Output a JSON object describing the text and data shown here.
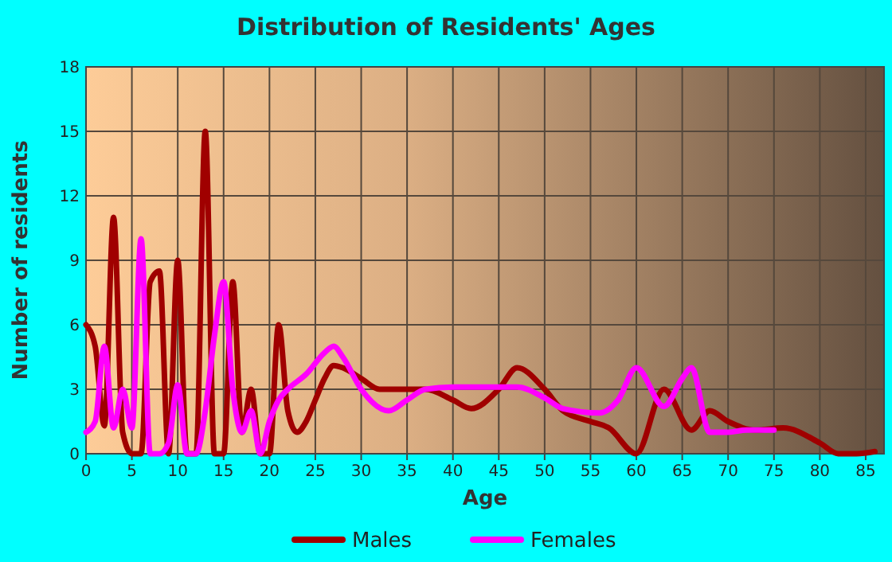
{
  "chart_data": {
    "type": "line",
    "title": "Distribution of Residents' Ages",
    "xlabel": "Age",
    "ylabel": "Number of residents",
    "xlim": [
      0,
      87
    ],
    "xticks": [
      0,
      5,
      10,
      15,
      20,
      25,
      30,
      35,
      40,
      45,
      50,
      55,
      60,
      65,
      70,
      75,
      80,
      85
    ],
    "ylim": [
      0,
      18
    ],
    "yticks": [
      0,
      3,
      6,
      9,
      12,
      15,
      18
    ],
    "grid": true,
    "legend": "bottom",
    "marker": "none",
    "line_style": "solid",
    "series": [
      {
        "name": "Males",
        "color": "#a00000",
        "x": [
          0,
          1,
          2,
          3,
          4,
          5,
          6,
          7,
          8,
          9,
          10,
          11,
          12,
          13,
          14,
          15,
          16,
          17,
          18,
          19,
          20,
          21,
          22,
          23,
          24,
          25,
          26,
          27,
          28,
          30,
          32,
          35,
          37,
          40,
          42,
          45,
          47,
          50,
          52,
          55,
          57,
          60,
          63,
          66,
          68,
          70,
          73,
          76,
          80,
          82,
          84,
          86
        ],
        "values": [
          6,
          5,
          1.3,
          11,
          1,
          0,
          0,
          8,
          8.5,
          0,
          9,
          0,
          0,
          15,
          0,
          0,
          8,
          1,
          3,
          0,
          0,
          6,
          2,
          1,
          1.5,
          2.5,
          3.5,
          4.1,
          4,
          3.5,
          3,
          3,
          3,
          2.5,
          2.1,
          3,
          4,
          3,
          2,
          1.5,
          1.2,
          0,
          3,
          1.1,
          2,
          1.5,
          1.1,
          1.2,
          0.5,
          0,
          0,
          0.1
        ]
      },
      {
        "name": "Females",
        "color": "#ff00ff",
        "x": [
          0,
          1,
          2,
          3,
          4,
          5,
          6,
          7,
          8,
          9,
          10,
          11,
          12,
          13,
          14,
          15,
          16,
          17,
          18,
          19,
          20,
          21,
          22,
          24,
          26,
          27,
          28,
          30,
          33,
          35,
          37,
          40,
          43,
          47,
          50,
          52,
          56,
          58,
          60,
          63,
          65,
          66,
          68,
          70,
          72,
          75
        ],
        "values": [
          1,
          1.5,
          5,
          1.2,
          3,
          1.2,
          10,
          0,
          0,
          0.5,
          3.2,
          0,
          0,
          2,
          5.5,
          8,
          3,
          1,
          2,
          0,
          1.5,
          2.5,
          3,
          3.7,
          4.7,
          5,
          4.5,
          3,
          2,
          2.5,
          3,
          3.1,
          3.1,
          3.1,
          2.6,
          2.1,
          1.9,
          2.5,
          4,
          2.2,
          3.5,
          4,
          1,
          1,
          1.1,
          1.1
        ]
      }
    ]
  }
}
